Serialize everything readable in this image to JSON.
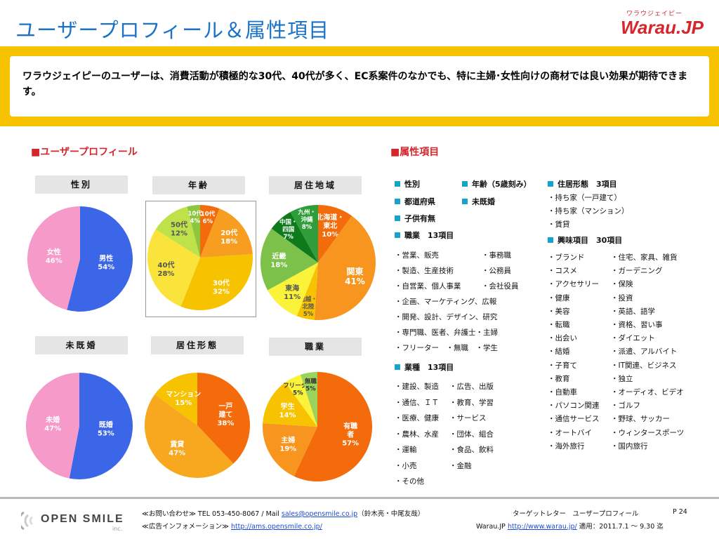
{
  "page_title": "ユーザープロフィール＆属性項目",
  "logo": {
    "kana": "ワラウジェイピー",
    "word": "Warau.JP"
  },
  "banner_text": "ワラウジェイピーのユーザーは、消費活動が積極的な30代、40代が多く、EC系案件のなかでも、特に主婦･女性向けの商材では良い効果が期待できます。",
  "sections": {
    "profile": "■ユーザープロフィール",
    "attributes": "■属性項目"
  },
  "chart_labels": {
    "gender": "性別",
    "age": "年齢",
    "region": "居住地域",
    "marital": "未既婚",
    "housing": "居住形態",
    "occupation": "職業"
  },
  "chart_data": [
    {
      "type": "pie",
      "title": "性別",
      "categories": [
        "男性",
        "女性"
      ],
      "values": [
        54,
        46
      ],
      "colors": [
        "#3b66e8",
        "#f59ac9"
      ]
    },
    {
      "type": "pie",
      "title": "年齢",
      "categories": [
        "10代",
        "20代",
        "30代",
        "40代",
        "50代",
        "10代"
      ],
      "values": [
        6,
        18,
        32,
        28,
        12,
        4
      ],
      "colors": [
        "#f36b0a",
        "#f79d1f",
        "#f7c300",
        "#fae43c",
        "#bfe24a",
        "#8cc63f"
      ]
    },
    {
      "type": "pie",
      "title": "居住地域",
      "categories": [
        "北海道・東北",
        "関東",
        "信越・北陸",
        "東海",
        "近畿",
        "中国・四国",
        "九州・沖縄"
      ],
      "values": [
        10,
        41,
        5,
        11,
        18,
        7,
        8
      ],
      "colors": [
        "#f36b0a",
        "#f7951e",
        "#f7c300",
        "#fbf23a",
        "#7cc24a",
        "#0e7a1c",
        "#2f9d3a"
      ]
    },
    {
      "type": "pie",
      "title": "未既婚",
      "categories": [
        "既婚",
        "未婚"
      ],
      "values": [
        53,
        47
      ],
      "colors": [
        "#3b66e8",
        "#f59ac9"
      ]
    },
    {
      "type": "pie",
      "title": "居住形態",
      "categories": [
        "一戸建て",
        "賃貸",
        "マンション"
      ],
      "values": [
        38,
        47,
        15
      ],
      "colors": [
        "#f36b0a",
        "#f7a81e",
        "#f7c300"
      ]
    },
    {
      "type": "pie",
      "title": "職業",
      "categories": [
        "有職者",
        "主婦",
        "学生",
        "フリーター",
        "無職"
      ],
      "values": [
        57,
        19,
        14,
        5,
        5
      ],
      "colors": [
        "#f36b0a",
        "#f7951e",
        "#f7c300",
        "#fbf23a",
        "#9cd35a"
      ]
    }
  ],
  "pie_labels": {
    "gender": [
      {
        "name": "男性",
        "val": "54%"
      },
      {
        "name": "女性",
        "val": "46%"
      }
    ],
    "age": [
      {
        "name": "10代",
        "val": "6%"
      },
      {
        "name": "20代",
        "val": "18%"
      },
      {
        "name": "30代",
        "val": "32%"
      },
      {
        "name": "40代",
        "val": "28%"
      },
      {
        "name": "50代",
        "val": "12%"
      },
      {
        "name": "10代",
        "val": "4%"
      }
    ],
    "region": [
      {
        "name": "北海道・",
        "name2": "東北",
        "val": "10%"
      },
      {
        "name": "関東",
        "val": "41%"
      },
      {
        "name": "信越・",
        "name2": "北陸",
        "val": "5%"
      },
      {
        "name": "東海",
        "val": "11%"
      },
      {
        "name": "近畿",
        "val": "18%"
      },
      {
        "name": "中国・",
        "name2": "四国",
        "val": "7%"
      },
      {
        "name": "九州・",
        "name2": "沖縄",
        "val": "8%"
      }
    ],
    "marital": [
      {
        "name": "既婚",
        "val": "53%"
      },
      {
        "name": "未婚",
        "val": "47%"
      }
    ],
    "housing": [
      {
        "name": "一戸",
        "name2": "建て",
        "val": "38%"
      },
      {
        "name": "賃貸",
        "val": "47%"
      },
      {
        "name": "マンション",
        "val": "15%"
      }
    ],
    "occupation": [
      {
        "name": "有職",
        "name2": "者",
        "val": "57%"
      },
      {
        "name": "主婦",
        "val": "19%"
      },
      {
        "name": "学生",
        "val": "14%"
      },
      {
        "name": "フリーター",
        "val": "5%"
      },
      {
        "name": "無職",
        "val": "5%"
      }
    ]
  },
  "attributes": {
    "head_gender": "性別",
    "head_age": "年齢（5歳刻み）",
    "head_housing": "住居形態　3項目",
    "head_pref": "都道府県",
    "head_married": "未既婚",
    "head_kids": "子供有無",
    "head_job": "職業　13項目",
    "head_interest": "興味項目　30項目",
    "head_industry": "業種　13項目",
    "housing_items": [
      "・持ち家（一戸建て）",
      "・持ち家（マンション）",
      "・賃貸"
    ],
    "job_items": [
      [
        "・営業、販売",
        "・事務職"
      ],
      [
        "・製造、生産技術",
        "・公務員"
      ],
      [
        "・自営業、個人事業",
        "・会社役員"
      ],
      [
        "・企画、マーケティング、広報",
        ""
      ],
      [
        "・開発、設計、デザイン、研究",
        ""
      ],
      [
        "・専門職、医者、弁護士・主婦",
        ""
      ],
      [
        "・フリーター　・無職　・学生",
        ""
      ]
    ],
    "industry_items": [
      [
        "・建設、製造",
        "・広告、出版"
      ],
      [
        "・通信、ＩＴ",
        "・教育、学習"
      ],
      [
        "・医療、健康",
        "・サービス"
      ],
      [
        "・農林、水産",
        "・団体、組合"
      ],
      [
        "・運輸",
        "・食品、飲料"
      ],
      [
        "・小売",
        "・金融"
      ],
      [
        "・その他",
        ""
      ]
    ],
    "interest_items": [
      [
        "・ブランド",
        "・住宅、家具、雑貨"
      ],
      [
        "・コスメ",
        "・ガーデニング"
      ],
      [
        "・アクセサリー",
        "・保険"
      ],
      [
        "・健康",
        "・投資"
      ],
      [
        "・美容",
        "・英語、語学"
      ],
      [
        "・転職",
        "・資格、習い事"
      ],
      [
        "・出会い",
        "・ダイエット"
      ],
      [
        "・結婚",
        "・派遣、アルバイト"
      ],
      [
        "・子育て",
        "・IT関連、ビジネス"
      ],
      [
        "・教育",
        "・独立"
      ],
      [
        "・自動車",
        "・オーディオ、ビデオ"
      ],
      [
        "・パソコン関連",
        "・ゴルフ"
      ],
      [
        "・通信サービス",
        "・野球、サッカー"
      ],
      [
        "・オートバイ",
        "・ウィンタースポーツ"
      ],
      [
        "・海外旅行",
        "・国内旅行"
      ]
    ]
  },
  "footer": {
    "brand": "OPEN SMILE",
    "brand_inc": "inc.",
    "contact_prefix": "≪お問い合わせ≫ TEL 053-450-8067 / Mail ",
    "contact_email": "sales@opensmile.co.jp",
    "contact_suffix": "（鈴木亮・中尾友哉）",
    "ad_prefix": "≪広告インフォメーション≫ ",
    "ad_url": "http://ams.opensmile.co.jp/",
    "right_title": "ターゲットレター　ユーザープロフィール",
    "page_num": "P 24",
    "right_prefix": "Warau.JP ",
    "right_url": "http://www.warau.jp/",
    "right_suffix": " 適用：2011.7.1 ～ 9.30 迄"
  }
}
